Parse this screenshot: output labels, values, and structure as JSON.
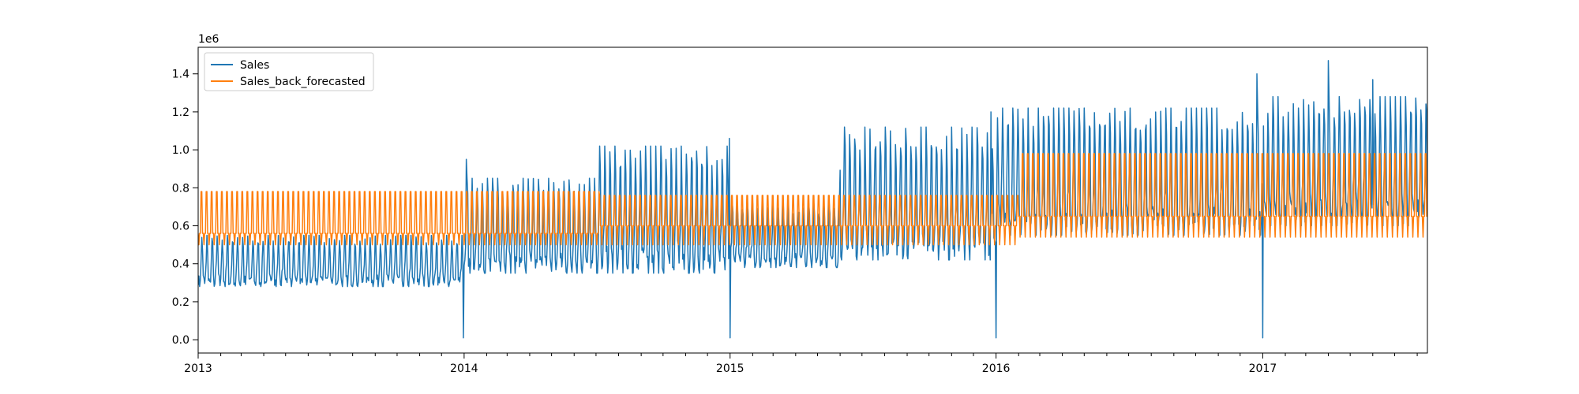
{
  "chart_data": {
    "type": "line",
    "title": "",
    "xlabel": "",
    "ylabel": "",
    "y_offset_label": "1e6",
    "xlim": [
      "2013-01-01",
      "2017-08-15"
    ],
    "ylim": [
      -0.07,
      1.54
    ],
    "x_ticks": [
      {
        "date": "2013-01-01",
        "label": "2013"
      },
      {
        "date": "2014-01-01",
        "label": "2014"
      },
      {
        "date": "2015-01-01",
        "label": "2015"
      },
      {
        "date": "2016-01-01",
        "label": "2016"
      },
      {
        "date": "2017-01-01",
        "label": "2017"
      }
    ],
    "y_ticks": [
      {
        "value": 0.0,
        "label": "0.0"
      },
      {
        "value": 0.2,
        "label": "0.2"
      },
      {
        "value": 0.4,
        "label": "0.4"
      },
      {
        "value": 0.6,
        "label": "0.6"
      },
      {
        "value": 0.8,
        "label": "0.8"
      },
      {
        "value": 1.0,
        "label": "1.0"
      },
      {
        "value": 1.2,
        "label": "1.2"
      },
      {
        "value": 1.4,
        "label": "1.4"
      }
    ],
    "legend_position": "top-left",
    "grid": false,
    "series": [
      {
        "name": "Sales",
        "color": "#1f77b4",
        "description_values": "daily sales (x1e6) with weekly cycle",
        "segments": [
          {
            "start": "2013-01-01",
            "end": "2013-12-31",
            "low": 0.28,
            "high": 0.55
          },
          {
            "start": "2014-01-01",
            "end": "2014-06-30",
            "low": 0.35,
            "high": 0.85
          },
          {
            "start": "2014-07-01",
            "end": "2014-12-31",
            "low": 0.35,
            "high": 1.02
          },
          {
            "start": "2015-01-01",
            "end": "2015-05-31",
            "low": 0.38,
            "high": 0.72
          },
          {
            "start": "2015-06-01",
            "end": "2015-12-31",
            "low": 0.42,
            "high": 1.12
          },
          {
            "start": "2016-01-01",
            "end": "2016-12-31",
            "low": 0.55,
            "high": 1.22
          },
          {
            "start": "2017-01-01",
            "end": "2017-08-15",
            "low": 0.6,
            "high": 1.28
          }
        ],
        "spikes": [
          {
            "date": "2013-12-31",
            "value": 0.01
          },
          {
            "date": "2014-01-04",
            "value": 0.95
          },
          {
            "date": "2014-12-31",
            "value": 1.06
          },
          {
            "date": "2015-01-01",
            "value": 0.01
          },
          {
            "date": "2015-12-25",
            "value": 1.2
          },
          {
            "date": "2016-01-01",
            "value": 0.01
          },
          {
            "date": "2016-12-24",
            "value": 1.4
          },
          {
            "date": "2017-01-01",
            "value": 0.01
          },
          {
            "date": "2017-04-01",
            "value": 1.47
          },
          {
            "date": "2017-06-01",
            "value": 1.37
          }
        ]
      },
      {
        "name": "Sales_back_forecasted",
        "color": "#ff7f0e",
        "segments": [
          {
            "start": "2013-01-01",
            "end": "2014-07-05",
            "low": 0.5,
            "high": 0.78,
            "mid": 0.56
          },
          {
            "start": "2014-07-06",
            "end": "2016-01-31",
            "low": 0.5,
            "high": 0.76,
            "mid": 0.6
          },
          {
            "start": "2016-02-01",
            "end": "2017-08-15",
            "low": 0.54,
            "high": 0.98,
            "mid": 0.65
          }
        ]
      }
    ]
  }
}
